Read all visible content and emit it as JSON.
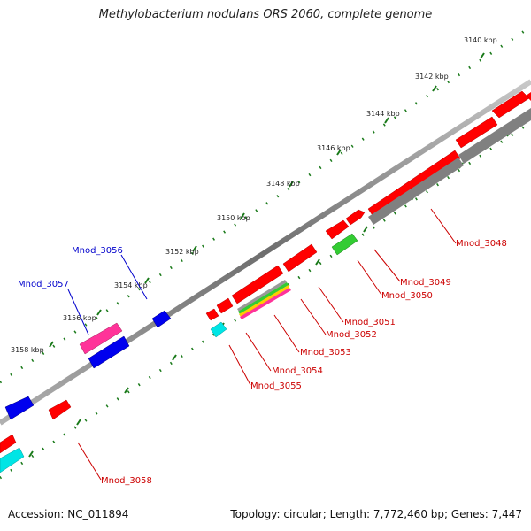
{
  "title": "Methylobacterium nodulans ORS 2060, complete genome",
  "footer": {
    "accession": "Accession: NC_011894",
    "summary": "Topology: circular; Length: 7,772,460 bp; Genes: 7,447"
  },
  "kbp_labels": [
    "3140 kbp",
    "3142 kbp",
    "3144 kbp",
    "3146 kbp",
    "3148 kbp",
    "3150 kbp",
    "3152 kbp",
    "3154 kbp",
    "3156 kbp",
    "3158 kbp"
  ],
  "gene_labels": {
    "plus": [
      "Mnod_3056",
      "Mnod_3057"
    ],
    "minus": [
      "Mnod_3048",
      "Mnod_3049",
      "Mnod_3050",
      "Mnod_3051",
      "Mnod_3052",
      "Mnod_3053",
      "Mnod_3054",
      "Mnod_3055",
      "Mnod_3058"
    ]
  },
  "colors": {
    "cds": "#ff0000",
    "cds_blue": "#0000ee",
    "cds_gray": "#808080",
    "rna_green": "#33cc33",
    "rna_cyan": "#00e5e5",
    "magenta": "#ff3399",
    "tick": "#1a7a1a",
    "backbone": "#7a7a7a",
    "label_plus": "#0000cc",
    "label_minus": "#cc0000"
  }
}
